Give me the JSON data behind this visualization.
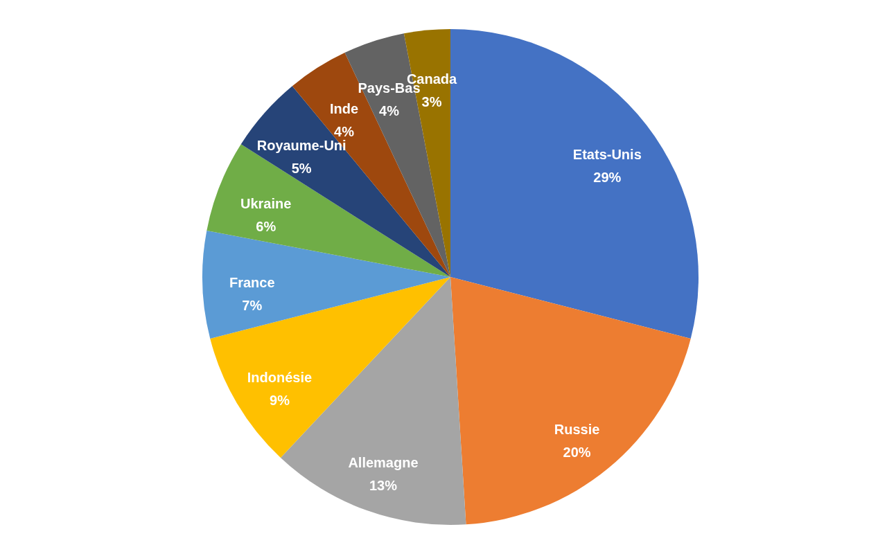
{
  "chart_data": {
    "type": "pie",
    "categories": [
      "Etats-Unis",
      "Russie",
      "Allemagne",
      "Indonésie",
      "France",
      "Ukraine",
      "Royaume-Uni",
      "Inde",
      "Pays-Bas",
      "Canada"
    ],
    "values": [
      29,
      20,
      13,
      9,
      7,
      6,
      5,
      4,
      4,
      3
    ],
    "value_labels": [
      "29%",
      "20%",
      "13%",
      "9%",
      "7%",
      "6%",
      "5%",
      "4%",
      "4%",
      "3%"
    ],
    "colors": [
      "#4472c4",
      "#ed7d31",
      "#a5a5a5",
      "#ffc000",
      "#5b9bd5",
      "#70ad47",
      "#264478",
      "#9e480e",
      "#636363",
      "#997300"
    ],
    "legend": false
  }
}
